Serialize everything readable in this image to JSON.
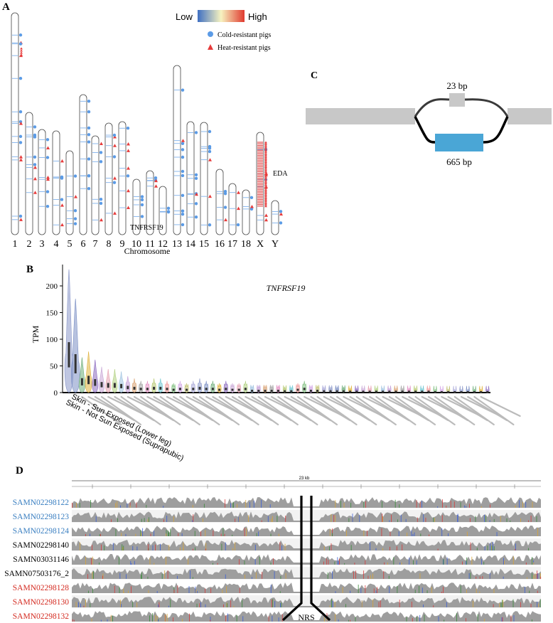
{
  "panel_a": {
    "letter": "A",
    "legend_low": "Low",
    "legend_high": "High",
    "legend_cold": "Cold-resistant pigs",
    "legend_heat": "Heat-resistant pigs",
    "xlabel": "Chromosome",
    "chromosomes": [
      "1",
      "2",
      "3",
      "4",
      "5",
      "6",
      "7",
      "8",
      "9",
      "10",
      "11",
      "12",
      "13",
      "14",
      "15",
      "16",
      "17",
      "18",
      "X",
      "Y"
    ],
    "gene_labels": {
      "eda": "EDA",
      "tnfrsf19": "TNFRSF19"
    },
    "colors": {
      "cold": "#5b9be6",
      "heat": "#e63a3a",
      "grad_low": "#3f6fc2",
      "grad_mid": "#f7f3c0",
      "grad_high": "#e03a2f"
    }
  },
  "panel_b": {
    "letter": "B",
    "chart_data": {
      "type": "violin",
      "title": "TNFRSF19",
      "ylabel": "TPM",
      "ylim": [
        0,
        240
      ],
      "yticks": [
        0,
        50,
        100,
        150,
        200
      ],
      "highlighted_tissues": [
        "Skin - Sun Exposed (Lower leg)",
        "Skin - Not Sun Exposed (Suprapubic)"
      ]
    }
  },
  "panel_c": {
    "letter": "C",
    "top_label": "23 bp",
    "bottom_label": "665 bp",
    "colors": {
      "exon": "#c8c8c8",
      "alt": "#4aa6d6"
    }
  },
  "panel_d": {
    "letter": "D",
    "scale_label": "23 kb",
    "nrs_label": "NRS",
    "samples": [
      {
        "id": "SAMN02298122",
        "group": "cold"
      },
      {
        "id": "SAMN02298123",
        "group": "cold"
      },
      {
        "id": "SAMN02298124",
        "group": "cold"
      },
      {
        "id": "SAMN02298140",
        "group": "neutral"
      },
      {
        "id": "SAMN03031146",
        "group": "neutral"
      },
      {
        "id": "SAMN07503176_2",
        "group": "neutral"
      },
      {
        "id": "SAMN02298128",
        "group": "heat"
      },
      {
        "id": "SAMN02298130",
        "group": "heat"
      },
      {
        "id": "SAMN02298132",
        "group": "heat"
      }
    ],
    "colors": {
      "cold": "#3a7fc1",
      "neutral": "#000000",
      "heat": "#d42a20"
    }
  }
}
